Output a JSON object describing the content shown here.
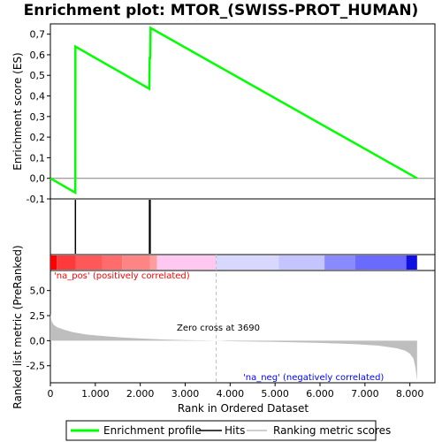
{
  "title": "Enrichment plot: MTOR_(SWISS-PROT_HUMAN)",
  "colors": {
    "es_line": "#00ff00",
    "hit": "#000000",
    "metric_fill": "#bebebe",
    "pos_label": "#ff0000",
    "neg_label": "#0000ff",
    "zero_cross_line": "#bebebe"
  },
  "chart_data": [
    {
      "type": "line",
      "ylabel": "Enrichment score (ES)",
      "xlim": [
        0,
        8557
      ],
      "ylim": [
        -0.1,
        0.75
      ],
      "yticks": [
        "0,7",
        "0,6",
        "0,5",
        "0,4",
        "0,3",
        "0,2",
        "0,1",
        "0,0",
        "-0,1"
      ],
      "ytick_values": [
        0.7,
        0.6,
        0.5,
        0.4,
        0.3,
        0.2,
        0.1,
        0.0,
        -0.1
      ],
      "grid": false,
      "series": [
        {
          "name": "Enrichment profile",
          "x": [
            0,
            555,
            557,
            2200,
            2205,
            2210,
            2220,
            2230,
            8160
          ],
          "y": [
            0.0,
            -0.07,
            0.64,
            0.435,
            0.48,
            0.585,
            0.585,
            0.73,
            0.0
          ]
        }
      ]
    },
    {
      "type": "bar",
      "name": "Hits",
      "hits_x": [
        557,
        2205,
        2210,
        2220
      ]
    },
    {
      "type": "heatmap",
      "xlim": [
        0,
        8557
      ],
      "segments": [
        {
          "x0": 0,
          "x1": 140,
          "color": "#ff0000"
        },
        {
          "x0": 140,
          "x1": 560,
          "color": "#ff3a3a"
        },
        {
          "x0": 560,
          "x1": 1150,
          "color": "#ff5858"
        },
        {
          "x0": 1150,
          "x1": 1600,
          "color": "#ff6c6c"
        },
        {
          "x0": 1600,
          "x1": 2220,
          "color": "#ff8484"
        },
        {
          "x0": 2220,
          "x1": 2370,
          "color": "#ff9c9c"
        },
        {
          "x0": 2370,
          "x1": 3690,
          "color": "#ffc8f0"
        },
        {
          "x0": 3690,
          "x1": 5080,
          "color": "#d8d8ff"
        },
        {
          "x0": 5080,
          "x1": 6100,
          "color": "#c4c4ff"
        },
        {
          "x0": 6100,
          "x1": 6780,
          "color": "#8a8aff"
        },
        {
          "x0": 6780,
          "x1": 7920,
          "color": "#6a6aff"
        },
        {
          "x0": 7920,
          "x1": 8160,
          "color": "#1010e0"
        }
      ]
    },
    {
      "type": "area",
      "xlabel": "Rank in Ordered Dataset",
      "ylabel": "Ranked list metric (PreRanked)",
      "xlim": [
        0,
        8557
      ],
      "ylim": [
        -4.2,
        7.0
      ],
      "xticks": [
        "0",
        "1.000",
        "2.000",
        "3.000",
        "4.000",
        "5.000",
        "6.000",
        "7.000",
        "8.000"
      ],
      "xtick_values": [
        0,
        1000,
        2000,
        3000,
        4000,
        5000,
        6000,
        7000,
        8000
      ],
      "yticks": [
        "5,0",
        "2,5",
        "0,0",
        "-2,5"
      ],
      "ytick_values": [
        5.0,
        2.5,
        0.0,
        -2.5
      ],
      "series": [
        {
          "name": "Ranking metric scores",
          "x": [
            0,
            30,
            80,
            150,
            300,
            500,
            800,
            1200,
            1600,
            2000,
            2500,
            3000,
            3500,
            3690,
            4000,
            5000,
            6000,
            6800,
            7300,
            7700,
            7900,
            8000,
            8080,
            8120,
            8150,
            8160
          ],
          "y": [
            2.7,
            1.9,
            1.55,
            1.35,
            1.1,
            0.85,
            0.62,
            0.45,
            0.32,
            0.22,
            0.12,
            0.06,
            0.02,
            0.0,
            -0.05,
            -0.12,
            -0.22,
            -0.35,
            -0.5,
            -0.75,
            -1.0,
            -1.3,
            -1.8,
            -2.6,
            -3.6,
            -4.0
          ]
        }
      ],
      "zero_cross_x": 3690
    }
  ],
  "annotations": {
    "pos_label": "'na_pos' (positively correlated)",
    "neg_label": "'na_neg' (negatively correlated)",
    "zero_cross": "Zero cross at 3690"
  },
  "legend": {
    "items": [
      {
        "label": "Enrichment profile",
        "color": "#00ff00"
      },
      {
        "label": "Hits",
        "color": "#000000"
      },
      {
        "label": "Ranking metric scores",
        "color": "#bebebe"
      }
    ]
  }
}
